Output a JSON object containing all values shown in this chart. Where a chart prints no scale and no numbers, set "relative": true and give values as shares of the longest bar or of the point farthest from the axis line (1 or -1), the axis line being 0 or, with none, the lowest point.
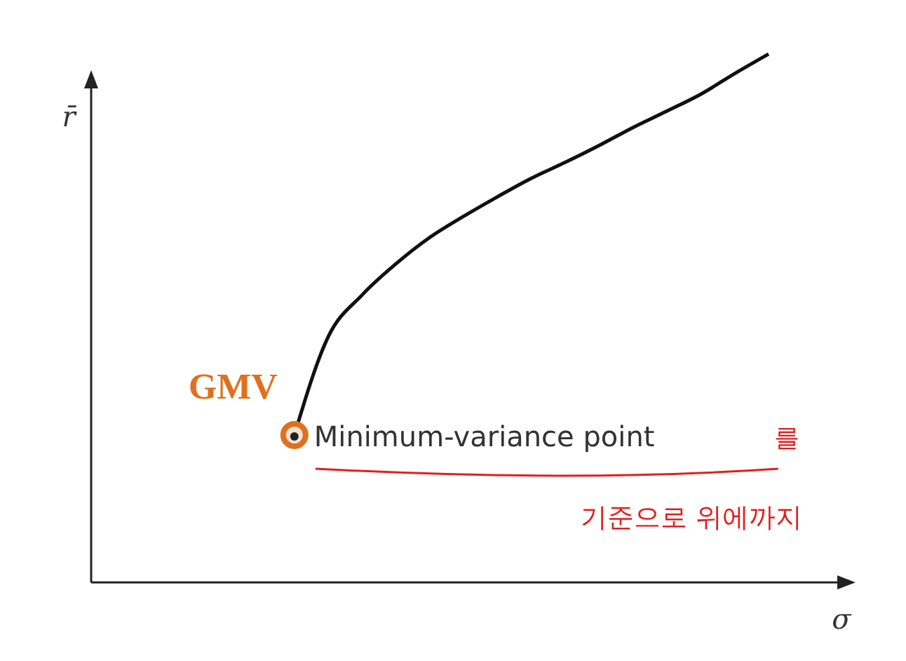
{
  "chart_data": {
    "type": "line",
    "relative": true,
    "xlabel": "σ",
    "ylabel": "r̄",
    "grid": false,
    "legend": false,
    "marker": "none",
    "line_style": "solid",
    "categories": [
      null,
      null,
      null,
      null,
      null,
      null,
      null,
      null,
      null,
      null,
      null,
      null,
      null,
      null,
      null,
      null,
      null,
      null,
      null,
      null,
      null
    ],
    "series": [
      {
        "color": "#111111",
        "values": [
          null,
          null,
          null,
          null,
          null,
          null,
          0.279,
          0.465,
          0.544,
          0.603,
          0.653,
          0.693,
          0.73,
          0.765,
          0.795,
          0.827,
          0.861,
          0.892,
          0.924,
          0.963,
          1.0
        ]
      }
    ],
    "annotations": [
      "GMV",
      "Minimum-variance point",
      "를",
      "기준으로 위에까지"
    ]
  }
}
